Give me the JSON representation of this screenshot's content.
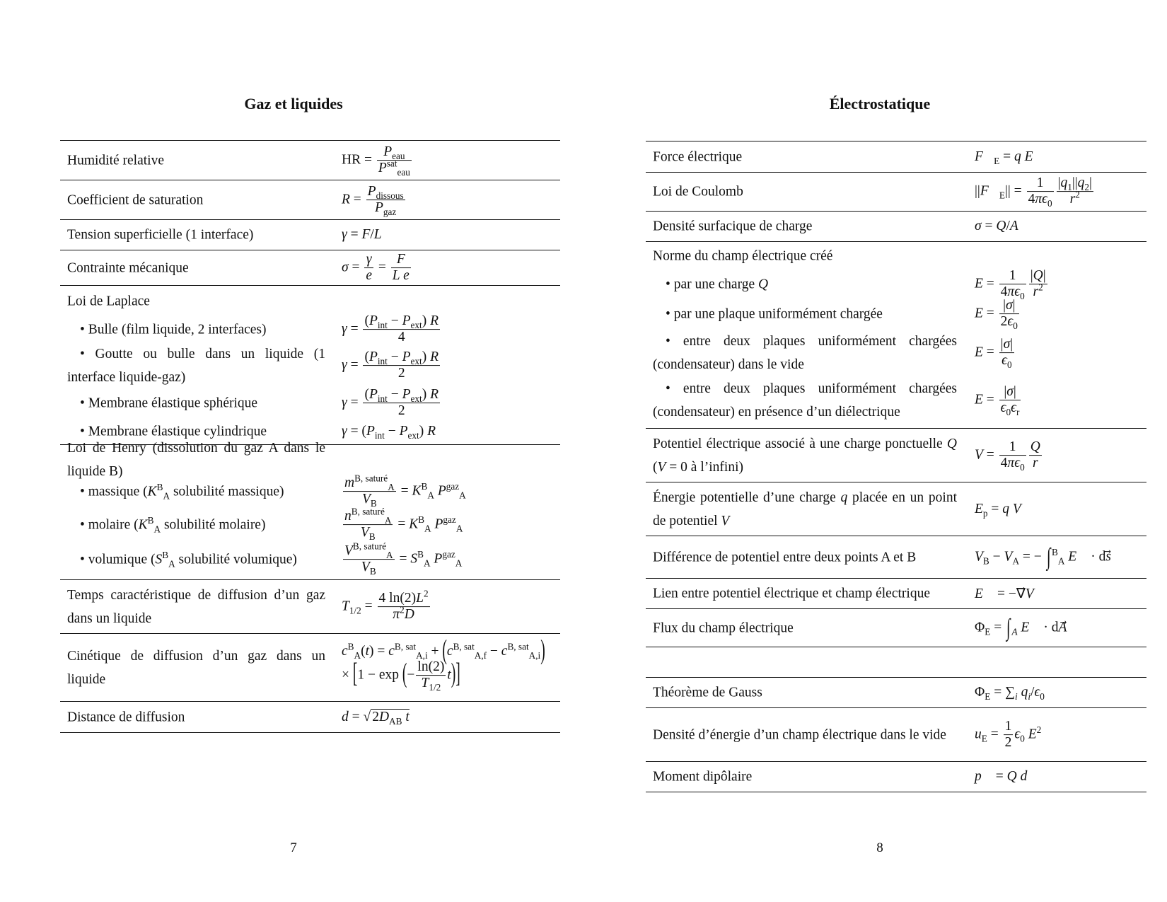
{
  "left_page": {
    "title": "Gaz et liquides",
    "page_number": "7",
    "rows": [
      {
        "label": "Humidité relative",
        "formula": "HR = <span class='fr'><span><i>P</i><sub>eau</sub></span><span><i>P</i><sup>sat</sup><sub>eau</sub></span></span>"
      },
      {
        "label": "Coefficient de saturation",
        "formula": "<i>R</i> = <span class='fr'><span><i>P</i><sub>dissous</sub></span><span><i>P</i><sub>gaz</sub></span></span>"
      },
      {
        "label": "Tension superficielle (1 interface)",
        "formula": "<i>γ</i> = <i>F</i>/<i>L</i>"
      },
      {
        "label": "Contrainte mécanique",
        "formula": "<i>σ</i> = <span class='fr'><span><i>γ</i></span><span><i>e</i></span></span> = <span class='fr'><span><i>F</i></span><span><i>L e</i></span></span>"
      },
      {
        "label": "Loi de Laplace",
        "items": [
          {
            "label": "• Bulle (film liquide, 2 interfaces)",
            "formula": "<i>γ</i> = <span class='fr'><span>(<i>P</i><sub>int</sub> − <i>P</i><sub>ext</sub>) <i>R</i></span><span>4</span></span>"
          },
          {
            "label": "• Goutte ou bulle dans un liquide (1 interface liquide-gaz)",
            "formula": "<i>γ</i> = <span class='fr'><span>(<i>P</i><sub>int</sub> − <i>P</i><sub>ext</sub>) <i>R</i></span><span>2</span></span>"
          },
          {
            "label": "• Membrane élastique sphérique",
            "formula": "<i>γ</i> = <span class='fr'><span>(<i>P</i><sub>int</sub> − <i>P</i><sub>ext</sub>) <i>R</i></span><span>2</span></span>"
          },
          {
            "label": "• Membrane élastique cylindrique",
            "formula": "<i>γ</i> = (<i>P</i><sub>int</sub> − <i>P</i><sub>ext</sub>) <i>R</i>"
          }
        ]
      },
      {
        "label": "Loi de Henry (dissolution du gaz A dans le liquide B)",
        "items": [
          {
            "label": "• massique (<i>K</i><sup>B</sup><sub>A</sub> solubilité massique)",
            "formula": "<span class='fr'><span><i>m</i><sup>B, saturé</sup><sub>A</sub></span><span><i>V</i><sub>B</sub></span></span> = <i>K</i><sup>B</sup><sub>A</sub> <i>P</i><sup>gaz</sup><sub>A</sub>"
          },
          {
            "label": "• molaire (<i>K</i><sup>B</sup><sub>A</sub> solubilité molaire)",
            "formula": "<span class='fr'><span><i>n</i><sup>B, saturé</sup><sub>A</sub></span><span><i>V</i><sub>B</sub></span></span> = <i>K</i><sup>B</sup><sub>A</sub> <i>P</i><sup>gaz</sup><sub>A</sub>"
          },
          {
            "label": "• volumique (<i>S</i><sup>B</sup><sub>A</sub> solubilité volumique)",
            "formula": "<span class='fr'><span><i>V</i><sup>B, saturé</sup><sub>A</sub></span><span><i>V</i><sub>B</sub></span></span> = <i>S</i><sup>B</sup><sub>A</sub> <i>P</i><sup>gaz</sup><sub>A</sub>"
          }
        ]
      },
      {
        "label": "Temps caractéristique de diffusion d’un gaz dans un liquide",
        "formula": "<i>T</i><sub>1/2</sub> = <span class='fr'><span>4 ln(2)<i>L</i><sup>2</sup></span><span><i>π</i><sup>2</sup><i>D</i></span></span>"
      },
      {
        "label": "Cinétique de diffusion d’un gaz dans un liquide",
        "formula": "<i>c</i><sup>B</sup><sub>A</sub>(<i>t</i>) = <i>c</i><sup>B, sat</sup><sub>A,i</sub> + <span class='big'>(</span><i>c</i><sup>B, sat</sup><sub>A,f</sub> − <i>c</i><sup>B, sat</sup><sub>A,i</sub><span class='big'>)</span><br>× <span class='big'>[</span>1 − exp <span class='big'>(</span>−<span class='fr'><span>ln(2)</span><span><i>T</i><sub>1/2</sub></span></span><i>t</i><span class='big'>)</span><span class='big'>]</span>"
      },
      {
        "label": "Distance de diffusion",
        "formula": "<i>d</i> = √<span class='sq'>2<i>D</i><sub>AB</sub> <i>t</i></span>"
      }
    ]
  },
  "right_page": {
    "title": "Électrostatique",
    "page_number": "8",
    "rows": [
      {
        "label": "Force électrique",
        "formula": "<i>F⃗</i><sub>E</sub> = <i>q</i> <i>E⃗</i>"
      },
      {
        "label": "Loi de Coulomb",
        "formula": "||<i>F⃗</i><sub>E</sub>|| = <span class='fr'><span>1</span><span>4<i>π</i><i>ϵ</i><sub>0</sub></span></span><span class='fr'><span>|<i>q</i><sub>1</sub>||<i>q</i><sub>2</sub>|</span><span><i>r</i><sup>2</sup></span></span>"
      },
      {
        "label": "Densité surfacique de charge",
        "formula": "<i>σ</i> = <i>Q</i>/<i>A</i>"
      },
      {
        "label": "Norme du champ électrique créé",
        "items": [
          {
            "label": "• par une charge <i>Q</i>",
            "formula": "<i>E</i> = <span class='fr'><span>1</span><span>4<i>π</i><i>ϵ</i><sub>0</sub></span></span><span class='fr'><span>|<i>Q</i>|</span><span><i>r</i><sup>2</sup></span></span>"
          },
          {
            "label": "• par une plaque uniformément chargée",
            "formula": "<i>E</i> = <span class='fr'><span>|<i>σ</i>|</span><span>2<i>ϵ</i><sub>0</sub></span></span>"
          },
          {
            "label": "• entre deux plaques uniformément chargées (condensateur) dans le vide",
            "formula": "<i>E</i> = <span class='fr'><span>|<i>σ</i>|</span><span><i>ϵ</i><sub>0</sub></span></span>"
          },
          {
            "label": "• entre deux plaques uniformément chargées (condensateur) en présence d’un diélectrique",
            "formula": "<i>E</i> = <span class='fr'><span>|<i>σ</i>|</span><span><i>ϵ</i><sub>0</sub><i>ϵ</i><sub>r</sub></span></span>"
          }
        ]
      },
      {
        "label": "Potentiel électrique associé à une charge ponctuelle <i>Q</i> (<i>V</i> = 0 à l’infini)",
        "formula": "<i>V</i> = <span class='fr'><span>1</span><span>4<i>π</i><i>ϵ</i><sub>0</sub></span></span><span class='fr'><span><i>Q</i></span><span><i>r</i></span></span>"
      },
      {
        "label": "Énergie potentielle d’une charge <i>q</i> placée en un point de potentiel <i>V</i>",
        "formula": "<i>E</i><sub>p</sub> = <i>q</i> <i>V</i>"
      },
      {
        "label": "Différence de potentiel entre deux points A et B",
        "formula": "<i>V</i><sub>B</sub> − <i>V</i><sub>A</sub> = − <span class='int'>∫</span><sup>B</sup><sub>A</sub> <i>E⃗</i> · d<i>s</i>⃗"
      },
      {
        "label": "Lien entre potentiel électrique et champ électrique",
        "formula": "<i>E⃗</i> = −∇⃗<i>V</i>"
      },
      {
        "label": "Flux du champ électrique",
        "formula": "Φ<sub>E</sub> = <span class='int'>∫</span><sub><i>A</i></sub> <i>E⃗</i> · d<i>A</i>⃗"
      },
      {
        "label": "",
        "formula": ""
      },
      {
        "label": "Théorème de Gauss",
        "formula": "Φ<sub>E</sub> = ∑<sub><i>i</i></sub> <i>q</i><sub><i>i</i></sub>/<i>ϵ</i><sub>0</sub>"
      },
      {
        "label": "Densité d’énergie d’un champ électrique dans le vide",
        "formula": "<i>u</i><sub>E</sub> = <span class='fr'><span>1</span><span>2</span></span><i>ϵ</i><sub>0</sub> <i>E</i><sup>2</sup>"
      },
      {
        "label": "Moment dipôlaire",
        "formula": "<i>p⃗</i> = <i>Q</i> <i>d⃗</i>"
      }
    ]
  }
}
